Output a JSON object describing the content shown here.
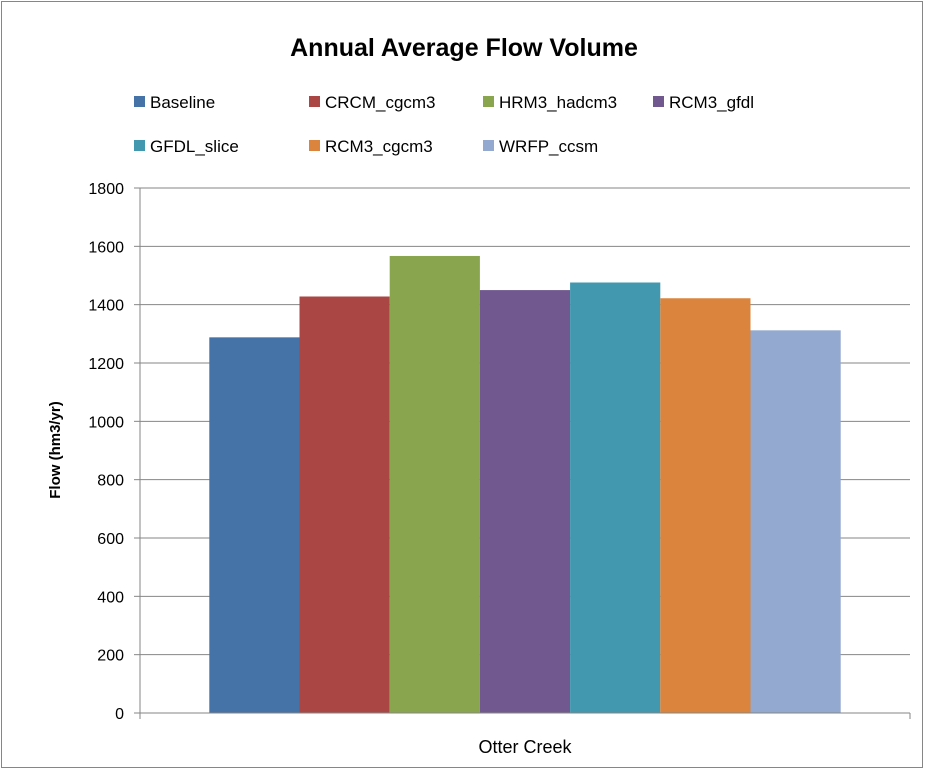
{
  "chart_data": {
    "type": "bar",
    "title": "Annual Average Flow Volume",
    "ylabel": "Flow  (hm3/yr)",
    "xlabel": "",
    "categories": [
      "Otter Creek"
    ],
    "ylim": [
      0,
      1800
    ],
    "yticks": [
      0,
      200,
      400,
      600,
      800,
      1000,
      1200,
      1400,
      1600,
      1800
    ],
    "grid": true,
    "legend_position": "top",
    "series": [
      {
        "name": "Baseline",
        "values": [
          1288
        ],
        "color": "#4572A7"
      },
      {
        "name": "CRCM_cgcm3",
        "values": [
          1428
        ],
        "color": "#AA4643"
      },
      {
        "name": "HRM3_hadcm3",
        "values": [
          1567
        ],
        "color": "#89A54E"
      },
      {
        "name": "RCM3_gfdl",
        "values": [
          1450
        ],
        "color": "#71588F"
      },
      {
        "name": "GFDL_slice",
        "values": [
          1476
        ],
        "color": "#4198AF"
      },
      {
        "name": "RCM3_cgcm3",
        "values": [
          1422
        ],
        "color": "#DB843D"
      },
      {
        "name": "WRFP_ccsm",
        "values": [
          1312
        ],
        "color": "#93A9CF"
      }
    ]
  }
}
